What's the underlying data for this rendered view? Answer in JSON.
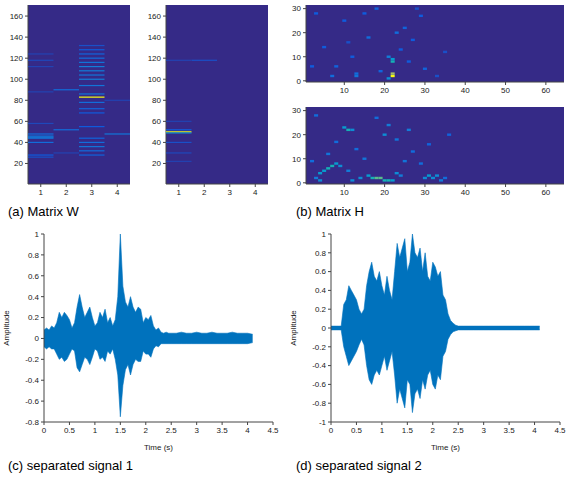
{
  "chart_data": [
    {
      "type": "heatmap",
      "title": "(a) Matrix W",
      "xlim": [
        0.5,
        4.5
      ],
      "xticks": [
        1,
        2,
        3,
        4
      ],
      "ylim": [
        0.5,
        170.5
      ],
      "yticks": [
        20,
        40,
        60,
        80,
        100,
        120,
        140,
        160
      ],
      "panels": [
        {
          "cells": [
            [
              1,
              26,
              0.15
            ],
            [
              1,
              28,
              0.2
            ],
            [
              1,
              40,
              0.3
            ],
            [
              1,
              44,
              0.35
            ],
            [
              1,
              45,
              0.4
            ],
            [
              1,
              46,
              0.35
            ],
            [
              1,
              48,
              0.3
            ],
            [
              1,
              58,
              0.12
            ],
            [
              1,
              88,
              0.1
            ],
            [
              1,
              112,
              0.1
            ],
            [
              1,
              118,
              0.12
            ],
            [
              1,
              124,
              0.1
            ],
            [
              2,
              52,
              0.3
            ],
            [
              2,
              90,
              0.3
            ],
            [
              2,
              30,
              0.1
            ],
            [
              3,
              28,
              0.25
            ],
            [
              3,
              32,
              0.3
            ],
            [
              3,
              36,
              0.35
            ],
            [
              3,
              40,
              0.3
            ],
            [
              3,
              44,
              0.25
            ],
            [
              3,
              55,
              0.2
            ],
            [
              3,
              68,
              0.2
            ],
            [
              3,
              72,
              0.25
            ],
            [
              3,
              78,
              0.3
            ],
            [
              3,
              83,
              1
            ],
            [
              3,
              86,
              0.35
            ],
            [
              3,
              94,
              0.35
            ],
            [
              3,
              100,
              0.4
            ],
            [
              3,
              104,
              0.35
            ],
            [
              3,
              108,
              0.4
            ],
            [
              3,
              112,
              0.4
            ],
            [
              3,
              116,
              0.35
            ],
            [
              3,
              120,
              0.3
            ],
            [
              3,
              124,
              0.25
            ],
            [
              3,
              128,
              0.2
            ],
            [
              3,
              132,
              0.15
            ],
            [
              4,
              48,
              0.35
            ],
            [
              4,
              80,
              0.1
            ]
          ]
        },
        {
          "cells": [
            [
              1,
              50,
              1
            ],
            [
              1,
              49,
              0.5
            ],
            [
              1,
              52,
              0.2
            ],
            [
              1,
              40,
              0.15
            ],
            [
              1,
              30,
              0.12
            ],
            [
              1,
              22,
              0.1
            ],
            [
              1,
              60,
              0.1
            ],
            [
              2,
              118,
              0.15
            ],
            [
              1,
              118,
              0.1
            ]
          ]
        }
      ]
    },
    {
      "type": "heatmap",
      "title": "(b) Matrix H",
      "xlim": [
        0.5,
        64.5
      ],
      "xticks": [
        10,
        20,
        30,
        40,
        50,
        60
      ],
      "ylim": [
        -0.5,
        31.5
      ],
      "yticks": [
        0,
        10,
        20,
        30
      ],
      "panels": [
        {
          "cells": [
            [
              22,
              2,
              1
            ],
            [
              22,
              3,
              0.9
            ],
            [
              21,
              1,
              0.5
            ],
            [
              22,
              8,
              0.7
            ],
            [
              22,
              9,
              0.6
            ],
            [
              21,
              10,
              0.4
            ],
            [
              7,
              2,
              0.3
            ],
            [
              8,
              6,
              0.25
            ],
            [
              13,
              2,
              0.35
            ],
            [
              13,
              3,
              0.3
            ],
            [
              16,
              18,
              0.3
            ],
            [
              10,
              25,
              0.2
            ],
            [
              3,
              28,
              0.2
            ],
            [
              18,
              30,
              0.25
            ],
            [
              25,
              22,
              0.25
            ],
            [
              27,
              17,
              0.2
            ],
            [
              30,
              5,
              0.25
            ],
            [
              35,
              12,
              0.15
            ],
            [
              5,
              14,
              0.2
            ],
            [
              12,
              10,
              0.2
            ],
            [
              23,
              20,
              0.3
            ],
            [
              29,
              27,
              0.2
            ],
            [
              19,
              4,
              0.25
            ],
            [
              24,
              13,
              0.2
            ],
            [
              33,
              2,
              0.15
            ],
            [
              2,
              6,
              0.2
            ],
            [
              15,
              28,
              0.2
            ],
            [
              11,
              16,
              0.15
            ],
            [
              26,
              8,
              0.2
            ],
            [
              28,
              30,
              0.15
            ]
          ]
        },
        {
          "cells": [
            [
              10,
              23,
              0.6
            ],
            [
              11,
              22,
              0.7
            ],
            [
              12,
              22,
              0.5
            ],
            [
              4,
              4,
              0.6
            ],
            [
              5,
              5,
              0.6
            ],
            [
              6,
              6,
              0.7
            ],
            [
              7,
              7,
              0.7
            ],
            [
              8,
              8,
              0.6
            ],
            [
              9,
              7,
              0.5
            ],
            [
              3,
              2,
              0.4
            ],
            [
              4,
              1,
              0.5
            ],
            [
              12,
              1,
              0.5
            ],
            [
              14,
              2,
              0.5
            ],
            [
              16,
              3,
              0.6
            ],
            [
              17,
              2,
              0.7
            ],
            [
              18,
              2,
              0.8
            ],
            [
              19,
              2,
              0.8
            ],
            [
              20,
              1,
              0.7
            ],
            [
              21,
              1,
              0.7
            ],
            [
              22,
              1,
              0.6
            ],
            [
              23,
              4,
              0.5
            ],
            [
              24,
              3,
              0.4
            ],
            [
              30,
              2,
              0.5
            ],
            [
              31,
              3,
              0.6
            ],
            [
              32,
              2,
              0.5
            ],
            [
              33,
              3,
              0.5
            ],
            [
              34,
              1,
              0.4
            ],
            [
              35,
              2,
              0.3
            ],
            [
              20,
              20,
              0.5
            ],
            [
              21,
              24,
              0.4
            ],
            [
              23,
              18,
              0.35
            ],
            [
              26,
              22,
              0.4
            ],
            [
              27,
              13,
              0.3
            ],
            [
              15,
              10,
              0.35
            ],
            [
              13,
              14,
              0.3
            ],
            [
              8,
              17,
              0.3
            ],
            [
              6,
              12,
              0.35
            ],
            [
              29,
              8,
              0.3
            ],
            [
              25,
              9,
              0.35
            ],
            [
              3,
              28,
              0.3
            ],
            [
              18,
              27,
              0.3
            ],
            [
              31,
              16,
              0.25
            ],
            [
              36,
              20,
              0.25
            ],
            [
              11,
              5,
              0.4
            ],
            [
              2,
              9,
              0.3
            ]
          ]
        }
      ]
    },
    {
      "type": "area",
      "title": "(c) separated signal 1",
      "xlabel": "Time (s)",
      "ylabel": "Amplitude",
      "color": "#0072bd",
      "xlim": [
        0,
        4.5
      ],
      "xticks": [
        0,
        0.5,
        1,
        1.5,
        2,
        2.5,
        3,
        3.5,
        4,
        4.5
      ],
      "ylim": [
        -0.8,
        1
      ],
      "yticks": [
        -0.8,
        -0.6,
        -0.4,
        -0.2,
        0,
        0.2,
        0.4,
        0.6,
        0.8,
        1
      ],
      "x": [
        0,
        0.05,
        0.1,
        0.15,
        0.2,
        0.25,
        0.3,
        0.35,
        0.4,
        0.45,
        0.5,
        0.55,
        0.6,
        0.65,
        0.7,
        0.75,
        0.8,
        0.85,
        0.9,
        0.95,
        1,
        1.05,
        1.1,
        1.15,
        1.2,
        1.25,
        1.3,
        1.35,
        1.4,
        1.45,
        1.5,
        1.55,
        1.6,
        1.65,
        1.7,
        1.75,
        1.8,
        1.85,
        1.9,
        1.95,
        2,
        2.05,
        2.1,
        2.15,
        2.2,
        2.25,
        2.3,
        2.35,
        2.4,
        2.45,
        2.5,
        2.6,
        2.7,
        2.8,
        2.9,
        3,
        3.1,
        3.2,
        3.3,
        3.4,
        3.5,
        3.6,
        3.7,
        3.8,
        3.9,
        4,
        4.1
      ],
      "max": [
        0.08,
        0.1,
        0.08,
        0.12,
        0.1,
        0.15,
        0.25,
        0.2,
        0.25,
        0.22,
        0.18,
        0.1,
        0.15,
        0.3,
        0.42,
        0.3,
        0.2,
        0.25,
        0.3,
        0.2,
        0.12,
        0.15,
        0.25,
        0.2,
        0.28,
        0.15,
        0.2,
        0.12,
        0.18,
        0.4,
        1,
        0.5,
        0.35,
        0.3,
        0.4,
        0.3,
        0.25,
        0.3,
        0.28,
        0.15,
        0.2,
        0.18,
        0.22,
        0.12,
        0.08,
        0.1,
        0.06,
        0.05,
        0.06,
        0.05,
        0.05,
        0.05,
        0.06,
        0.05,
        0.05,
        0.06,
        0.05,
        0.05,
        0.06,
        0.05,
        0.05,
        0.05,
        0.06,
        0.05,
        0.05,
        0.05,
        0.04
      ],
      "min": [
        -0.08,
        -0.1,
        -0.08,
        -0.1,
        -0.1,
        -0.15,
        -0.2,
        -0.18,
        -0.22,
        -0.2,
        -0.15,
        -0.1,
        -0.12,
        -0.28,
        -0.32,
        -0.25,
        -0.18,
        -0.2,
        -0.25,
        -0.18,
        -0.1,
        -0.12,
        -0.2,
        -0.18,
        -0.22,
        -0.12,
        -0.15,
        -0.1,
        -0.2,
        -0.35,
        -0.75,
        -0.45,
        -0.3,
        -0.25,
        -0.35,
        -0.25,
        -0.2,
        -0.22,
        -0.22,
        -0.12,
        -0.15,
        -0.15,
        -0.18,
        -0.1,
        -0.07,
        -0.08,
        -0.05,
        -0.05,
        -0.05,
        -0.05,
        -0.05,
        -0.05,
        -0.05,
        -0.05,
        -0.05,
        -0.05,
        -0.05,
        -0.05,
        -0.05,
        -0.05,
        -0.05,
        -0.05,
        -0.05,
        -0.05,
        -0.05,
        -0.05,
        -0.04
      ]
    },
    {
      "type": "area",
      "title": "(d) separated signal 2",
      "xlabel": "Time (s)",
      "ylabel": "Amplitude",
      "color": "#0072bd",
      "xlim": [
        0,
        4.5
      ],
      "xticks": [
        0,
        0.5,
        1,
        1.5,
        2,
        2.5,
        3,
        3.5,
        4,
        4.5
      ],
      "ylim": [
        -1,
        1
      ],
      "yticks": [
        -1,
        -0.8,
        -0.6,
        -0.4,
        -0.2,
        0,
        0.2,
        0.4,
        0.6,
        0.8,
        1
      ],
      "x": [
        0,
        0.05,
        0.1,
        0.15,
        0.2,
        0.25,
        0.3,
        0.35,
        0.4,
        0.45,
        0.5,
        0.55,
        0.6,
        0.65,
        0.7,
        0.75,
        0.8,
        0.85,
        0.9,
        0.95,
        1,
        1.05,
        1.1,
        1.15,
        1.2,
        1.25,
        1.3,
        1.35,
        1.4,
        1.45,
        1.5,
        1.55,
        1.6,
        1.65,
        1.7,
        1.75,
        1.8,
        1.85,
        1.9,
        1.95,
        2,
        2.05,
        2.1,
        2.15,
        2.2,
        2.25,
        2.3,
        2.35,
        2.4,
        2.45,
        2.5,
        2.6,
        2.7,
        2.8,
        2.9,
        3,
        3.1,
        3.2,
        3.3,
        3.4,
        3.5,
        3.6,
        3.7,
        3.8,
        3.9,
        4,
        4.1
      ],
      "max": [
        0.02,
        0.02,
        0.02,
        0.02,
        0.02,
        0.25,
        0.3,
        0.45,
        0.4,
        0.35,
        0.3,
        0.2,
        0.15,
        0.2,
        0.45,
        0.6,
        0.7,
        0.55,
        0.5,
        0.6,
        0.45,
        0.35,
        0.55,
        0.4,
        0.3,
        0.6,
        0.9,
        0.75,
        0.85,
        0.95,
        0.6,
        0.7,
        1,
        0.8,
        0.75,
        0.85,
        0.6,
        0.8,
        0.55,
        0.5,
        0.7,
        0.65,
        0.55,
        0.6,
        0.35,
        0.3,
        0.15,
        0.08,
        0.05,
        0.03,
        0.02,
        0.02,
        0.02,
        0.02,
        0.02,
        0.02,
        0.02,
        0.02,
        0.02,
        0.02,
        0.02,
        0.02,
        0.02,
        0.02,
        0.02,
        0.02,
        0.02
      ],
      "min": [
        -0.02,
        -0.02,
        -0.02,
        -0.02,
        -0.02,
        -0.2,
        -0.3,
        -0.4,
        -0.35,
        -0.3,
        -0.25,
        -0.18,
        -0.12,
        -0.18,
        -0.4,
        -0.55,
        -0.6,
        -0.5,
        -0.45,
        -0.5,
        -0.4,
        -0.3,
        -0.45,
        -0.35,
        -0.25,
        -0.5,
        -0.8,
        -0.65,
        -0.75,
        -0.85,
        -0.55,
        -0.6,
        -0.9,
        -0.7,
        -0.65,
        -0.75,
        -0.55,
        -0.65,
        -0.5,
        -0.45,
        -0.6,
        -0.65,
        -0.5,
        -0.55,
        -0.3,
        -0.25,
        -0.12,
        -0.07,
        -0.04,
        -0.03,
        -0.02,
        -0.02,
        -0.02,
        -0.02,
        -0.02,
        -0.02,
        -0.02,
        -0.02,
        -0.02,
        -0.02,
        -0.02,
        -0.02,
        -0.02,
        -0.02,
        -0.02,
        -0.02,
        -0.02
      ]
    }
  ]
}
